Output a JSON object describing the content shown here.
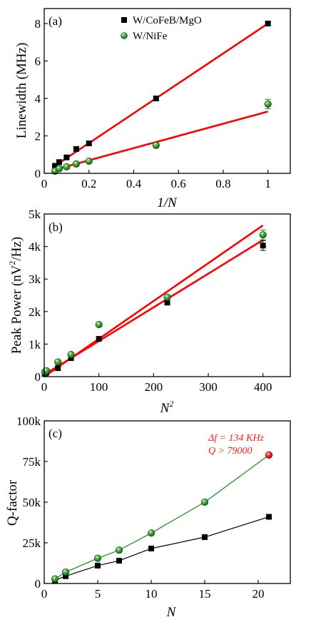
{
  "chart_data": [
    {
      "type": "scatter",
      "panel_label": "(a)",
      "xlabel": "1/N",
      "ylabel": "Linewidth (MHz)",
      "xlim": [
        0,
        1.1
      ],
      "ylim": [
        0,
        8.8
      ],
      "xticks": [
        0,
        0.2,
        0.4,
        0.6,
        0.8,
        1
      ],
      "xtick_labels": [
        "0",
        "0.2",
        "0.4",
        "0.6",
        "0.8",
        "1"
      ],
      "yticks": [
        0,
        2,
        4,
        6,
        8
      ],
      "ytick_labels": [
        "0",
        "2",
        "4",
        "6",
        "8"
      ],
      "legend_position": "top-center",
      "series": [
        {
          "name": "W/CoFeB/MgO",
          "marker": "square",
          "color": "#000000",
          "points": [
            [
              0.048,
              0.4
            ],
            [
              0.067,
              0.6
            ],
            [
              0.1,
              0.85
            ],
            [
              0.143,
              1.3
            ],
            [
              0.2,
              1.6
            ],
            [
              0.5,
              4.0
            ],
            [
              1.0,
              8.0
            ]
          ],
          "errors": [
            0.1,
            0.1,
            0.1,
            0.12,
            0.12,
            0.1,
            0.12
          ],
          "fit": {
            "color": "#ff0000",
            "x": [
              0.048,
              1.0
            ],
            "y": [
              0.4,
              8.0
            ]
          }
        },
        {
          "name": "W/NiFe",
          "marker": "sphere",
          "color": "#1a8a1a",
          "points": [
            [
              0.048,
              0.12
            ],
            [
              0.067,
              0.25
            ],
            [
              0.1,
              0.35
            ],
            [
              0.143,
              0.5
            ],
            [
              0.2,
              0.65
            ],
            [
              0.5,
              1.5
            ],
            [
              1.0,
              3.7
            ]
          ],
          "errors": [
            0.08,
            0.08,
            0.08,
            0.08,
            0.08,
            0.15,
            0.25
          ],
          "fit": {
            "color": "#ff0000",
            "x": [
              0.048,
              1.0
            ],
            "y": [
              0.2,
              3.3
            ]
          }
        }
      ]
    },
    {
      "type": "scatter",
      "panel_label": "(b)",
      "xlabel": "N",
      "xlabel_sup": "2",
      "ylabel": "Peak Power (nV",
      "ylabel_sup": "2",
      "ylabel_tail": "/Hz)",
      "xlim": [
        0,
        450
      ],
      "ylim": [
        0,
        5000
      ],
      "xticks": [
        0,
        100,
        200,
        300,
        400
      ],
      "xtick_labels": [
        "0",
        "100",
        "200",
        "300",
        "400"
      ],
      "yticks": [
        0,
        1000,
        2000,
        3000,
        4000,
        5000
      ],
      "ytick_labels": [
        "0",
        "1k",
        "2k",
        "3k",
        "4k",
        "5k"
      ],
      "series": [
        {
          "name": "W/CoFeB/MgO",
          "marker": "square",
          "color": "#000000",
          "points": [
            [
              1,
              80
            ],
            [
              4,
              120
            ],
            [
              25,
              260
            ],
            [
              49,
              570
            ],
            [
              100,
              1160
            ],
            [
              225,
              2280
            ],
            [
              400,
              4030
            ]
          ],
          "errors": [
            40,
            40,
            40,
            50,
            60,
            80,
            150
          ],
          "fit": {
            "color": "#ff0000",
            "x": [
              0,
              400
            ],
            "y": [
              60,
              4200
            ]
          }
        },
        {
          "name": "W/NiFe",
          "marker": "sphere",
          "color": "#1a8a1a",
          "points": [
            [
              1,
              140
            ],
            [
              4,
              180
            ],
            [
              25,
              450
            ],
            [
              49,
              680
            ],
            [
              100,
              1600
            ],
            [
              225,
              2440
            ],
            [
              400,
              4360
            ]
          ],
          "errors": [
            40,
            40,
            40,
            60,
            60,
            80,
            150
          ],
          "fit": {
            "color": "#ff0000",
            "x": [
              0,
              400
            ],
            "y": [
              0,
              4650
            ]
          }
        }
      ]
    },
    {
      "type": "line",
      "panel_label": "(c)",
      "xlabel": "N",
      "ylabel": "Q-factor",
      "xlim": [
        0,
        23
      ],
      "ylim": [
        0,
        100000
      ],
      "xticks": [
        0,
        5,
        10,
        15,
        20
      ],
      "xtick_labels": [
        "0",
        "5",
        "10",
        "15",
        "20"
      ],
      "yticks": [
        0,
        25000,
        50000,
        75000,
        100000
      ],
      "ytick_labels": [
        "0",
        "25k",
        "50k",
        "75k",
        "100k"
      ],
      "annotation": {
        "line1": "Δf = 134 KHz",
        "line2": "Q > 79000",
        "color": "#ff2020"
      },
      "series": [
        {
          "name": "W/CoFeB/MgO",
          "marker": "square",
          "color": "#000000",
          "points": [
            [
              1,
              2000
            ],
            [
              2,
              4500
            ],
            [
              5,
              11000
            ],
            [
              7,
              14000
            ],
            [
              10,
              21500
            ],
            [
              15,
              28500
            ],
            [
              21,
              41000
            ]
          ]
        },
        {
          "name": "W/NiFe",
          "marker": "sphere",
          "color": "#1a8a1a",
          "highlight_last_color": "#ff2020",
          "points": [
            [
              1,
              2800
            ],
            [
              2,
              7000
            ],
            [
              5,
              15500
            ],
            [
              7,
              20500
            ],
            [
              10,
              31000
            ],
            [
              15,
              50000
            ],
            [
              21,
              79000
            ]
          ]
        }
      ]
    }
  ]
}
